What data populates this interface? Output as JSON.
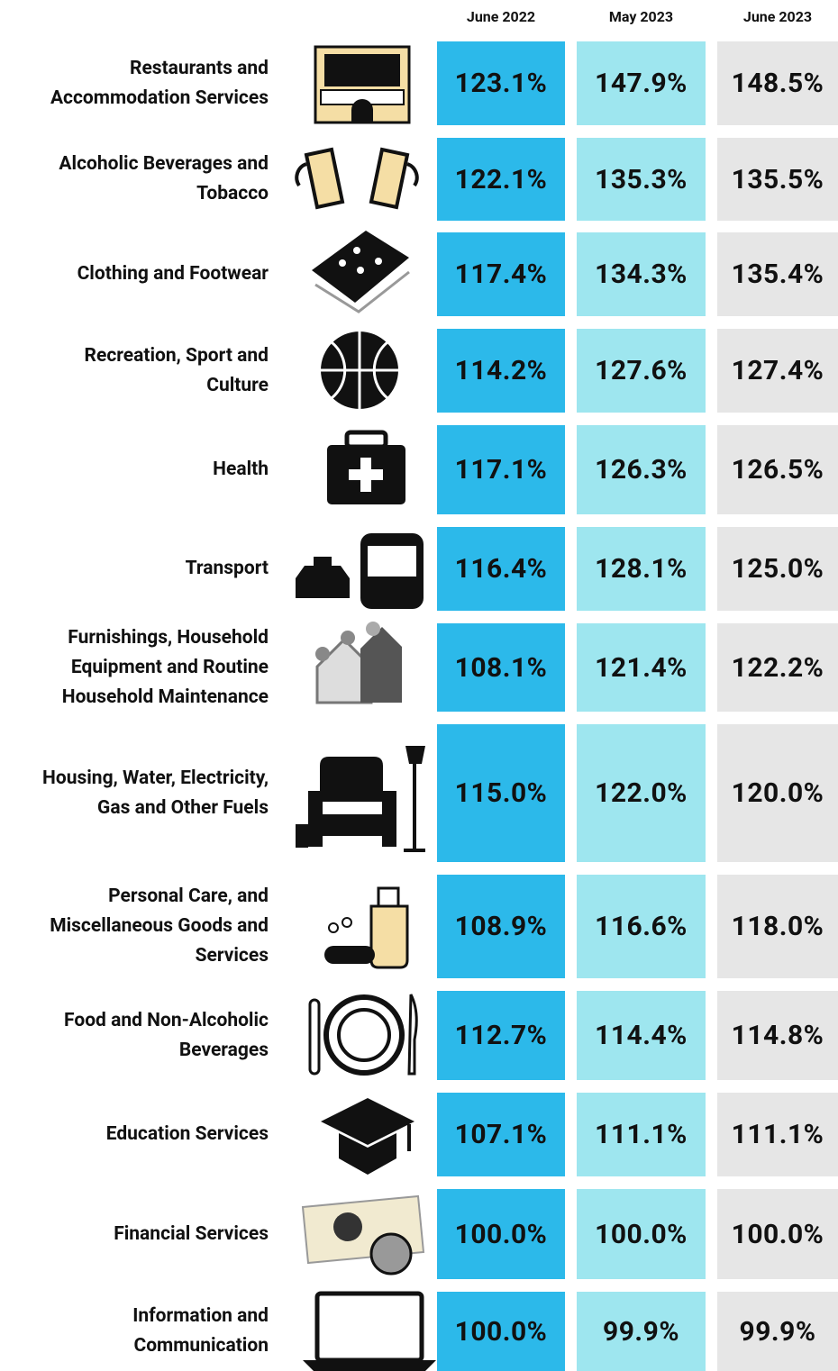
{
  "table": {
    "columns": [
      "June 2022",
      "May 2023",
      "June 2023"
    ],
    "rows": [
      {
        "label": [
          "Restaurants and",
          "Accommodation Services"
        ],
        "cells": [
          "123.1%",
          "147.9%",
          "148.5%"
        ]
      },
      {
        "label": [
          "Alcoholic Beverages and",
          "Tobacco"
        ],
        "cells": [
          "122.1%",
          "135.3%",
          "135.5%"
        ]
      },
      {
        "label": [
          "Clothing and Footwear"
        ],
        "cells": [
          "117.4%",
          "134.3%",
          "135.4%"
        ]
      },
      {
        "label": [
          "Recreation, Sport and",
          "Culture"
        ],
        "cells": [
          "114.2%",
          "127.6%",
          "127.4%"
        ]
      },
      {
        "label": [
          "Health"
        ],
        "cells": [
          "117.1%",
          "126.3%",
          "126.5%"
        ]
      },
      {
        "label": [
          "Transport"
        ],
        "cells": [
          "116.4%",
          "128.1%",
          "125.0%"
        ]
      },
      {
        "label": [
          "Furnishings, Household",
          "Equipment and Routine",
          "Household Maintenance"
        ],
        "cells": [
          "108.1%",
          "121.4%",
          "122.2%"
        ]
      },
      {
        "label": [
          "Housing, Water, Electricity,",
          "Gas and Other Fuels"
        ],
        "cells": [
          "115.0%",
          "122.0%",
          "120.0%"
        ]
      },
      {
        "label": [
          "Personal Care, and",
          "Miscellaneous Goods and",
          "Services"
        ],
        "cells": [
          "108.9%",
          "116.6%",
          "118.0%"
        ]
      },
      {
        "label": [
          "Food and Non-Alcoholic",
          "Beverages"
        ],
        "cells": [
          "112.7%",
          "114.4%",
          "114.8%"
        ]
      },
      {
        "label": [
          "Education Services"
        ],
        "cells": [
          "107.1%",
          "111.1%",
          "111.1%"
        ]
      },
      {
        "label": [
          "Financial Services"
        ],
        "cells": [
          "100.0%",
          "100.0%",
          "100.0%"
        ]
      },
      {
        "label": [
          "Information and",
          "Communication"
        ],
        "cells": [
          "100.0%",
          "99.9%",
          "99.9%"
        ]
      }
    ]
  }
}
